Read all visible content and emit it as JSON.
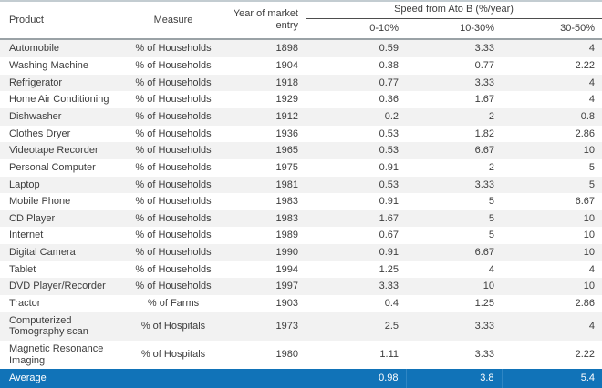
{
  "chart_data": {
    "type": "table",
    "group_header": "Speed from Ato B (%/year)",
    "columns": {
      "product": "Product",
      "measure": "Measure",
      "year": "Year of market entry",
      "speed_cols": [
        "0-10%",
        "10-30%",
        "30-50%"
      ]
    },
    "rows": [
      {
        "product": "Automobile",
        "measure": "% of Households",
        "year": "1898",
        "s1": "0.59",
        "s2": "3.33",
        "s3": "4"
      },
      {
        "product": "Washing Machine",
        "measure": "% of Households",
        "year": "1904",
        "s1": "0.38",
        "s2": "0.77",
        "s3": "2.22"
      },
      {
        "product": "Refrigerator",
        "measure": "% of Households",
        "year": "1918",
        "s1": "0.77",
        "s2": "3.33",
        "s3": "4"
      },
      {
        "product": "Home Air Conditioning",
        "measure": "% of Households",
        "year": "1929",
        "s1": "0.36",
        "s2": "1.67",
        "s3": "4"
      },
      {
        "product": "Dishwasher",
        "measure": "% of Households",
        "year": "1912",
        "s1": "0.2",
        "s2": "2",
        "s3": "0.8"
      },
      {
        "product": "Clothes Dryer",
        "measure": "% of Households",
        "year": "1936",
        "s1": "0.53",
        "s2": "1.82",
        "s3": "2.86"
      },
      {
        "product": "Videotape Recorder",
        "measure": "% of Households",
        "year": "1965",
        "s1": "0.53",
        "s2": "6.67",
        "s3": "10"
      },
      {
        "product": "Personal Computer",
        "measure": "% of Households",
        "year": "1975",
        "s1": "0.91",
        "s2": "2",
        "s3": "5"
      },
      {
        "product": "Laptop",
        "measure": "% of Households",
        "year": "1981",
        "s1": "0.53",
        "s2": "3.33",
        "s3": "5"
      },
      {
        "product": "Mobile Phone",
        "measure": "% of Households",
        "year": "1983",
        "s1": "0.91",
        "s2": "5",
        "s3": "6.67"
      },
      {
        "product": "CD Player",
        "measure": "% of Households",
        "year": "1983",
        "s1": "1.67",
        "s2": "5",
        "s3": "10"
      },
      {
        "product": "Internet",
        "measure": "% of Households",
        "year": "1989",
        "s1": "0.67",
        "s2": "5",
        "s3": "10"
      },
      {
        "product": "Digital Camera",
        "measure": "% of Households",
        "year": "1990",
        "s1": "0.91",
        "s2": "6.67",
        "s3": "10"
      },
      {
        "product": "Tablet",
        "measure": "% of Households",
        "year": "1994",
        "s1": "1.25",
        "s2": "4",
        "s3": "4"
      },
      {
        "product": "DVD Player/Recorder",
        "measure": "% of Households",
        "year": "1997",
        "s1": "3.33",
        "s2": "10",
        "s3": "10"
      },
      {
        "product": "Tractor",
        "measure": "% of Farms",
        "year": "1903",
        "s1": "0.4",
        "s2": "1.25",
        "s3": "2.86"
      },
      {
        "product": "Computerized Tomography scan",
        "measure": "% of Hospitals",
        "year": "1973",
        "s1": "2.5",
        "s2": "3.33",
        "s3": "4"
      },
      {
        "product": "Magnetic Resonance Imaging",
        "measure": "% of Hospitals",
        "year": "1980",
        "s1": "1.11",
        "s2": "3.33",
        "s3": "2.22"
      }
    ],
    "average": {
      "label": "Average",
      "s1": "0.98",
      "s2": "3.8",
      "s3": "5.4"
    }
  },
  "colors": {
    "average_row_bg": "#1173b8",
    "stripe_bg": "#f2f2f2",
    "text": "#3d3d3d",
    "header_rule": "#9aa2a6",
    "top_rule": "#c3ccd1",
    "group_rule": "#4d4d4d"
  }
}
